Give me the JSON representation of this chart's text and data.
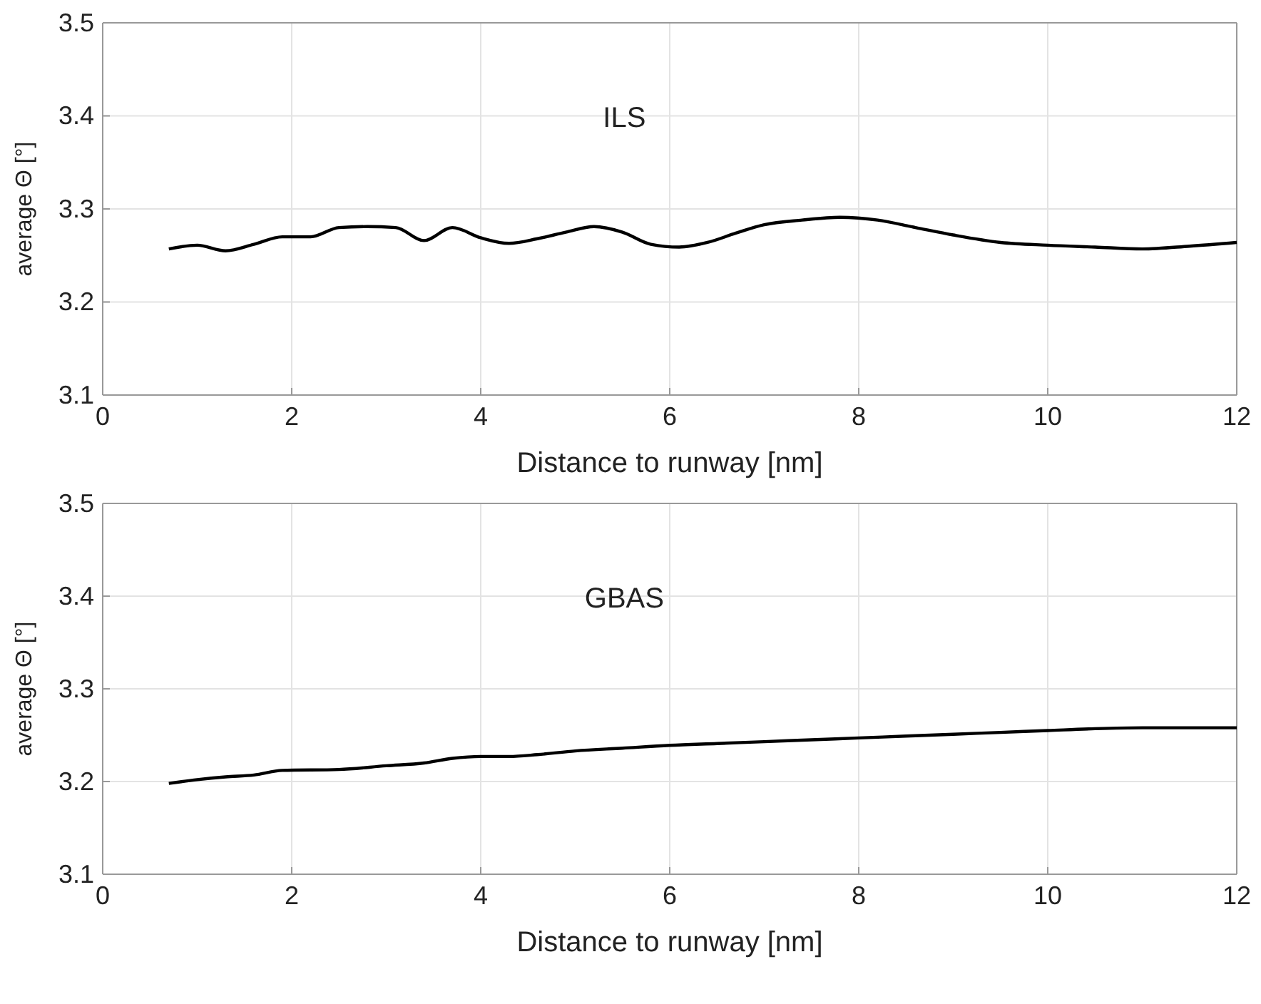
{
  "chart_data": [
    {
      "type": "line",
      "xlabel": "Distance to runway [nm]",
      "ylabel": "average Θ [°]",
      "annotations": [
        "ILS"
      ],
      "xlim": [
        0,
        12
      ],
      "xticks": [
        0,
        2,
        4,
        6,
        8,
        10,
        12
      ],
      "ylim": [
        3.1,
        3.5
      ],
      "yticks": [
        3.1,
        3.2,
        3.3,
        3.4,
        3.5
      ],
      "grid": true,
      "series": [
        {
          "color": "#000000",
          "x": [
            0.7,
            1.0,
            1.3,
            1.6,
            1.9,
            2.2,
            2.5,
            2.8,
            3.1,
            3.4,
            3.7,
            4.0,
            4.3,
            4.6,
            4.9,
            5.2,
            5.5,
            5.8,
            6.1,
            6.4,
            6.7,
            7.0,
            7.4,
            7.8,
            8.2,
            8.6,
            9.0,
            9.5,
            10.0,
            10.5,
            11.0,
            11.5,
            12.0
          ],
          "values": [
            3.257,
            3.261,
            3.255,
            3.262,
            3.27,
            3.27,
            3.28,
            3.281,
            3.28,
            3.266,
            3.28,
            3.269,
            3.263,
            3.268,
            3.275,
            3.281,
            3.275,
            3.262,
            3.259,
            3.264,
            3.274,
            3.283,
            3.288,
            3.291,
            3.288,
            3.28,
            3.272,
            3.264,
            3.261,
            3.259,
            3.257,
            3.26,
            3.264
          ]
        }
      ]
    },
    {
      "type": "line",
      "xlabel": "Distance to runway [nm]",
      "ylabel": "average Θ [°]",
      "annotations": [
        "GBAS"
      ],
      "xlim": [
        0,
        12
      ],
      "xticks": [
        0,
        2,
        4,
        6,
        8,
        10,
        12
      ],
      "ylim": [
        3.1,
        3.5
      ],
      "yticks": [
        3.1,
        3.2,
        3.3,
        3.4,
        3.5
      ],
      "grid": true,
      "series": [
        {
          "color": "#000000",
          "x": [
            0.7,
            1.0,
            1.3,
            1.6,
            1.9,
            2.5,
            3.0,
            3.4,
            3.7,
            4.0,
            4.3,
            4.6,
            5.0,
            5.5,
            6.0,
            6.5,
            7.0,
            7.5,
            8.0,
            8.5,
            9.0,
            9.5,
            10.0,
            10.5,
            11.0,
            11.5,
            12.0
          ],
          "values": [
            3.198,
            3.202,
            3.205,
            3.207,
            3.212,
            3.213,
            3.217,
            3.22,
            3.225,
            3.227,
            3.227,
            3.229,
            3.233,
            3.236,
            3.239,
            3.241,
            3.243,
            3.245,
            3.247,
            3.249,
            3.251,
            3.253,
            3.255,
            3.257,
            3.258,
            3.258,
            3.258
          ]
        }
      ]
    }
  ]
}
